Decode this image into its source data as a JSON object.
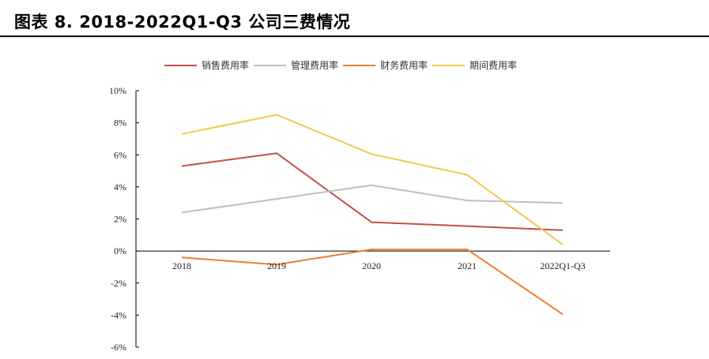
{
  "figure": {
    "title": "图表 8.  2018-2022Q1-Q3 公司三费情况"
  },
  "chart_data": {
    "type": "line",
    "categories": [
      "2018",
      "2019",
      "2020",
      "2021",
      "2022Q1-Q3"
    ],
    "series": [
      {
        "name": "销售费用率",
        "color": "#c0504d",
        "values": [
          5.3,
          6.1,
          1.8,
          1.55,
          1.3
        ]
      },
      {
        "name": "管理费用率",
        "color": "#bfbfbf",
        "values": [
          2.4,
          3.25,
          4.1,
          3.15,
          3.0
        ]
      },
      {
        "name": "财务费用率",
        "color": "#ed7d31",
        "values": [
          -0.4,
          -0.85,
          0.1,
          0.1,
          -3.95
        ]
      },
      {
        "name": "期间费用率",
        "color": "#f2c84b",
        "values": [
          7.3,
          8.5,
          6.05,
          4.75,
          0.4
        ]
      }
    ],
    "y_ticks": [
      "10%",
      "8%",
      "6%",
      "4%",
      "2%",
      "0%",
      "-2%",
      "-4%",
      "-6%"
    ],
    "ylim": [
      -6,
      10
    ],
    "xlabel": "",
    "ylabel": "",
    "legend_position": "top-center",
    "grid": false
  }
}
